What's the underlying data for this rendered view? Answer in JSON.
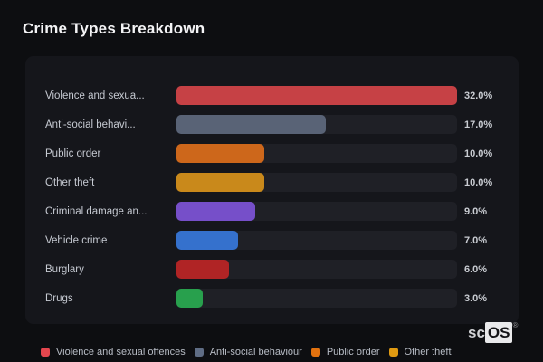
{
  "page": {
    "title": "Crime Types Breakdown"
  },
  "chart_data": {
    "type": "bar",
    "orientation": "horizontal",
    "title": "Crime Types Breakdown",
    "xlabel": "",
    "ylabel": "",
    "xlim": [
      0,
      32
    ],
    "unit": "%",
    "grid": false,
    "categories": [
      "Violence and sexua...",
      "Anti-social behavi...",
      "Public order",
      "Other theft",
      "Criminal damage an...",
      "Vehicle crime",
      "Burglary",
      "Drugs"
    ],
    "values": [
      32.0,
      17.0,
      10.0,
      10.0,
      9.0,
      7.0,
      6.0,
      3.0
    ],
    "items": [
      {
        "label": "Violence and sexua...",
        "value": 32.0,
        "display_value": "32.0%",
        "color": "#c64145"
      },
      {
        "label": "Anti-social behavi...",
        "value": 17.0,
        "display_value": "17.0%",
        "color": "#596376"
      },
      {
        "label": "Public order",
        "value": 10.0,
        "display_value": "10.0%",
        "color": "#cd671b"
      },
      {
        "label": "Other theft",
        "value": 10.0,
        "display_value": "10.0%",
        "color": "#c9891b"
      },
      {
        "label": "Criminal damage an...",
        "value": 9.0,
        "display_value": "9.0%",
        "color": "#764fc9"
      },
      {
        "label": "Vehicle crime",
        "value": 7.0,
        "display_value": "7.0%",
        "color": "#3571cd"
      },
      {
        "label": "Burglary",
        "value": 6.0,
        "display_value": "6.0%",
        "color": "#b02425"
      },
      {
        "label": "Drugs",
        "value": 3.0,
        "display_value": "3.0%",
        "color": "#28a04d"
      }
    ],
    "track_color": "#1f2026",
    "panel_color": "#15161b",
    "background_color": "#0d0e11",
    "legend_position": "bottom"
  },
  "legend": {
    "items": [
      {
        "label": "Violence and sexual offences",
        "color": "#e4464e"
      },
      {
        "label": "Anti-social behaviour",
        "color": "#5f6d85"
      },
      {
        "label": "Public order",
        "color": "#e2720f"
      },
      {
        "label": "Other theft",
        "color": "#e09a12"
      }
    ]
  },
  "logo": {
    "prefix": "sc",
    "box": "OS",
    "registered": "®"
  }
}
